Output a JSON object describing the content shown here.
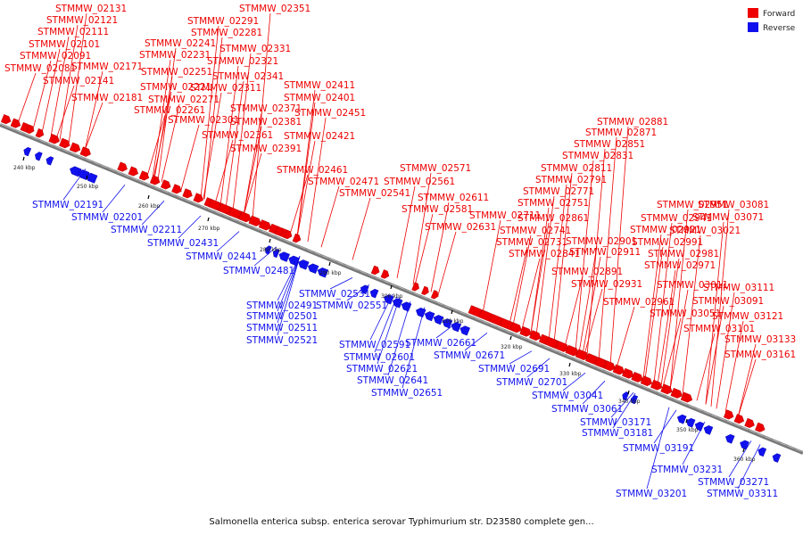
{
  "colors": {
    "forward": "#ee0000",
    "reverse": "#1111ee",
    "backbone": "#777777",
    "text": "#111111"
  },
  "legend": {
    "forward": "Forward",
    "reverse": "Reverse"
  },
  "caption": "Salmonella enterica subsp. enterica serovar Typhimurium str. D23580 complete gen...",
  "ticks": [
    "240 kbp",
    "250 kbp",
    "260 kbp",
    "270 kbp",
    "280 kbp",
    "290 kbp",
    "300 kbp",
    "310 kbp",
    "320 kbp",
    "330 kbp",
    "340 kbp",
    "350 kbp",
    "360 kbp"
  ],
  "forward_labels": [
    "STMMW_02131",
    "STMMW_02121",
    "STMMW_02111",
    "STMMW_02101",
    "STMMW_02091",
    "STMMW_02081",
    "STMMW_02171",
    "STMMW_02141",
    "STMMW_02181",
    "STMMW_02351",
    "STMMW_02291",
    "STMMW_02281",
    "STMMW_02241",
    "STMMW_02231",
    "STMMW_02331",
    "STMMW_02321",
    "STMMW_02251",
    "STMMW_02341",
    "STMMW_02221",
    "STMMW_02311",
    "STMMW_02271",
    "STMMW_02261",
    "STMMW_02301",
    "STMMW_02411",
    "STMMW_02401",
    "STMMW_02371",
    "STMMW_02451",
    "STMMW_02381",
    "STMMW_02361",
    "STMMW_02421",
    "STMMW_02391",
    "STMMW_02461",
    "STMMW_02471",
    "STMMW_02541",
    "STMMW_02571",
    "STMMW_02561",
    "STMMW_02611",
    "STMMW_02581",
    "STMMW_02631",
    "STMMW_02881",
    "STMMW_02871",
    "STMMW_02851",
    "STMMW_02831",
    "STMMW_02811",
    "STMMW_02791",
    "STMMW_02771",
    "STMMW_02751",
    "STMMW_02711",
    "STMMW_02861",
    "STMMW_02741",
    "STMMW_02731",
    "STMMW_02841",
    "STMMW_02901",
    "STMMW_02911",
    "STMMW_02891",
    "STMMW_02931",
    "STMMW_02951",
    "STMMW_03081",
    "STMMW_02941",
    "STMMW_03071",
    "STMMW_02921",
    "STMMW_03021",
    "STMMW_02991",
    "STMMW_02981",
    "STMMW_02971",
    "STMMW_03011",
    "STMMW_02961",
    "STMMW_03051",
    "STMMW_03111",
    "STMMW_03091",
    "STMMW_03121",
    "STMMW_03101",
    "STMMW_03133",
    "STMMW_03161"
  ],
  "reverse_labels": [
    "STMMW_02191",
    "STMMW_02201",
    "STMMW_02211",
    "STMMW_02431",
    "STMMW_02441",
    "STMMW_02481",
    "STMMW_02531",
    "STMMW_02551",
    "STMMW_02491",
    "STMMW_02501",
    "STMMW_02511",
    "STMMW_02521",
    "STMMW_02591",
    "STMMW_02661",
    "STMMW_02601",
    "STMMW_02671",
    "STMMW_02621",
    "STMMW_02691",
    "STMMW_02641",
    "STMMW_02701",
    "STMMW_02651",
    "STMMW_03041",
    "STMMW_03061",
    "STMMW_03171",
    "STMMW_03181",
    "STMMW_03191",
    "STMMW_03231",
    "STMMW_03271",
    "STMMW_03201",
    "STMMW_03311"
  ]
}
